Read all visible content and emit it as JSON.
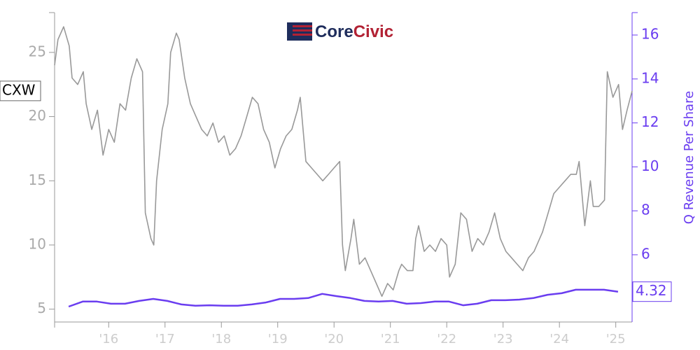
{
  "chart_data": {
    "type": "line",
    "logo": [
      "Core",
      "Civic"
    ],
    "y2label": "Q Revenue Per Share",
    "xlim": [
      2015.04,
      2025.29
    ],
    "xticks": [
      {
        "value": 2016,
        "label": "'16"
      },
      {
        "value": 2017,
        "label": "'17"
      },
      {
        "value": 2018,
        "label": "'18"
      },
      {
        "value": 2019,
        "label": "'19"
      },
      {
        "value": 2020,
        "label": "'20"
      },
      {
        "value": 2021,
        "label": "'21"
      },
      {
        "value": 2022,
        "label": "'22"
      },
      {
        "value": 2023,
        "label": "'23"
      },
      {
        "value": 2024,
        "label": "'24"
      },
      {
        "value": 2025,
        "label": "'25"
      }
    ],
    "ylim": [
      4,
      28.1
    ],
    "yticks": [
      5,
      10,
      15,
      20,
      25
    ],
    "y2lim": [
      2.94,
      17.02
    ],
    "y2ticks": [
      6,
      8,
      10,
      12,
      14,
      16
    ],
    "series": [
      {
        "name": "CXW",
        "color": "#999999",
        "x": [
          2015.04,
          2015.1,
          2015.2,
          2015.3,
          2015.35,
          2015.45,
          2015.55,
          2015.6,
          2015.7,
          2015.8,
          2015.9,
          2016.0,
          2016.1,
          2016.2,
          2016.3,
          2016.4,
          2016.5,
          2016.6,
          2016.65,
          2016.75,
          2016.8,
          2016.85,
          2016.95,
          2017.05,
          2017.1,
          2017.2,
          2017.25,
          2017.35,
          2017.45,
          2017.55,
          2017.65,
          2017.75,
          2017.85,
          2017.95,
          2018.05,
          2018.15,
          2018.25,
          2018.35,
          2018.45,
          2018.55,
          2018.65,
          2018.75,
          2018.85,
          2018.95,
          2019.05,
          2019.15,
          2019.25,
          2019.35,
          2019.4,
          2019.5,
          2019.6,
          2019.7,
          2019.8,
          2019.9,
          2020.0,
          2020.1,
          2020.15,
          2020.2,
          2020.3,
          2020.35,
          2020.45,
          2020.55,
          2020.65,
          2020.75,
          2020.85,
          2020.95,
          2021.05,
          2021.15,
          2021.2,
          2021.3,
          2021.4,
          2021.45,
          2021.5,
          2021.6,
          2021.7,
          2021.8,
          2021.9,
          2022.0,
          2022.05,
          2022.15,
          2022.25,
          2022.35,
          2022.45,
          2022.55,
          2022.65,
          2022.75,
          2022.85,
          2022.95,
          2023.05,
          2023.15,
          2023.25,
          2023.35,
          2023.45,
          2023.55,
          2023.7,
          2023.8,
          2023.9,
          2024.0,
          2024.1,
          2024.2,
          2024.3,
          2024.35,
          2024.45,
          2024.55,
          2024.6,
          2024.7,
          2024.8,
          2024.85,
          2024.95,
          2025.05,
          2025.12,
          2025.2,
          2025.29
        ],
        "values": [
          24,
          26,
          27,
          25.5,
          23,
          22.5,
          23.5,
          21,
          19,
          20.5,
          17,
          19,
          18,
          21,
          20.5,
          23,
          24.5,
          23.5,
          12.5,
          10.5,
          10,
          15,
          19,
          21,
          25,
          26.5,
          26,
          23,
          21,
          20,
          19,
          18.5,
          19.5,
          18,
          18.5,
          17,
          17.5,
          18.5,
          20,
          21.5,
          21,
          19,
          18,
          16,
          17.5,
          18.5,
          19,
          20.5,
          21.5,
          16.5,
          16,
          15.5,
          15,
          15.5,
          16,
          16.5,
          10,
          8,
          10.5,
          12,
          8.5,
          9,
          8,
          7,
          6,
          7,
          6.5,
          8,
          8.5,
          8,
          8,
          10.5,
          11.5,
          9.5,
          10,
          9.5,
          10.5,
          10,
          7.5,
          8.5,
          12.5,
          12,
          9.5,
          10.5,
          10,
          11,
          12.5,
          10.5,
          9.5,
          9,
          8.5,
          8,
          9,
          9.5,
          11,
          12.5,
          14,
          14.5,
          15,
          15.5,
          15.5,
          16.5,
          11.5,
          15,
          13,
          13,
          13.5,
          23.5,
          21.5,
          22.5,
          19,
          20.5,
          22
        ]
      },
      {
        "color": "#6a3df0",
        "axis": "y2",
        "x": [
          2015.29,
          2015.54,
          2015.79,
          2016.04,
          2016.29,
          2016.54,
          2016.79,
          2017.04,
          2017.29,
          2017.54,
          2017.79,
          2018.04,
          2018.29,
          2018.54,
          2018.79,
          2019.04,
          2019.29,
          2019.54,
          2019.79,
          2020.04,
          2020.29,
          2020.54,
          2020.79,
          2021.04,
          2021.29,
          2021.54,
          2021.79,
          2022.04,
          2022.29,
          2022.54,
          2022.79,
          2023.04,
          2023.29,
          2023.54,
          2023.79,
          2024.04,
          2024.29,
          2024.54,
          2024.79,
          2025.04
        ],
        "values": [
          3.64,
          3.87,
          3.87,
          3.77,
          3.77,
          3.9,
          3.99,
          3.9,
          3.74,
          3.68,
          3.7,
          3.68,
          3.68,
          3.74,
          3.83,
          3.99,
          3.99,
          4.03,
          4.22,
          4.12,
          4.03,
          3.9,
          3.87,
          3.9,
          3.77,
          3.8,
          3.87,
          3.87,
          3.7,
          3.77,
          3.93,
          3.93,
          3.96,
          4.03,
          4.18,
          4.25,
          4.41,
          4.41,
          4.41,
          4.32
        ]
      }
    ]
  }
}
